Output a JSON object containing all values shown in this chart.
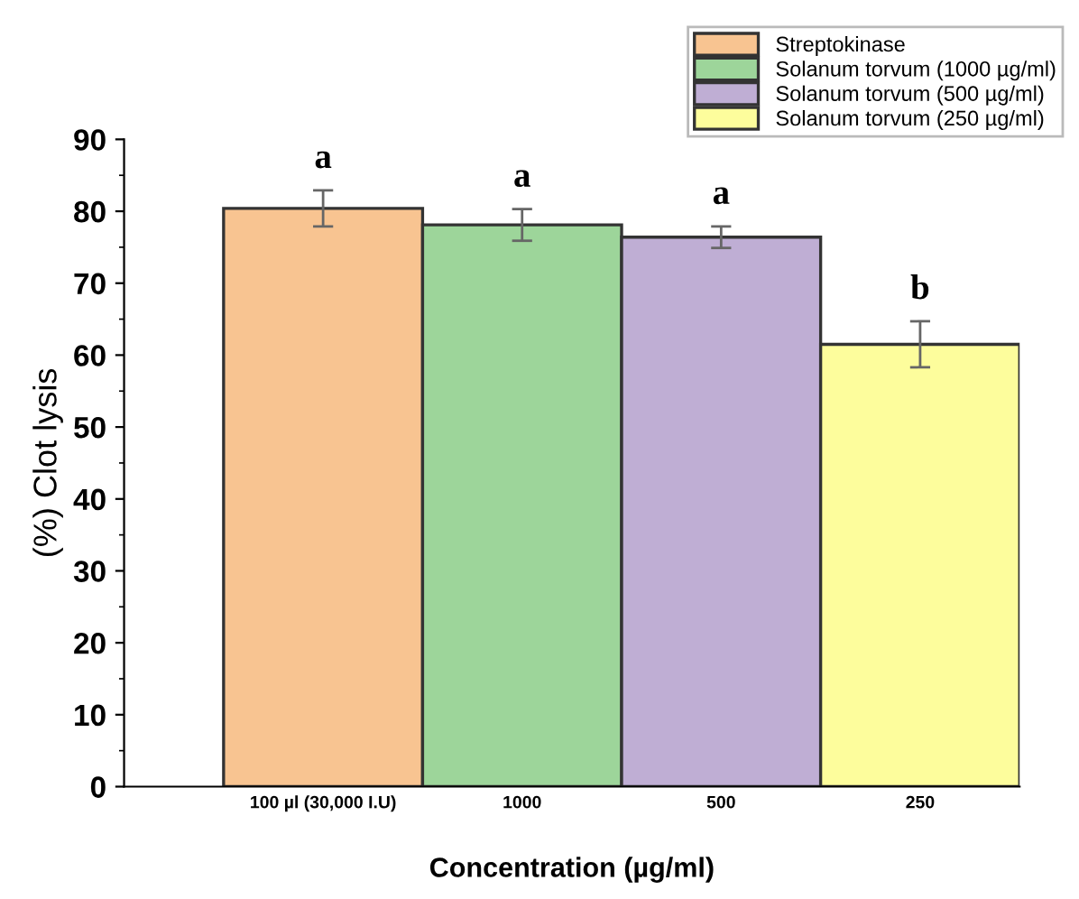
{
  "chart_data": {
    "type": "bar",
    "xlabel": "Concentration (µg/ml)",
    "ylabel": "(%) Clot lysis",
    "categories": [
      "100 µl (30,000 I.U)",
      "1000",
      "500",
      "250"
    ],
    "series": [
      {
        "name": "Streptokinase",
        "color": "#f8c491",
        "values": [
          80.4,
          null,
          null,
          null
        ],
        "errors": [
          2.5,
          null,
          null,
          null
        ]
      },
      {
        "name": "Solanum torvum (1000 µg/ml)",
        "color": "#9dd59a",
        "values": [
          null,
          78.1,
          null,
          null
        ],
        "errors": [
          null,
          2.2,
          null,
          null
        ]
      },
      {
        "name": "Solanum torvum (500 µg/ml)",
        "color": "#bfaed4",
        "values": [
          null,
          null,
          76.4,
          null
        ],
        "errors": [
          null,
          null,
          1.5,
          null
        ]
      },
      {
        "name": "Solanum torvum (250 µg/ml)",
        "color": "#fdfd9c",
        "values": [
          null,
          null,
          null,
          61.5
        ],
        "errors": [
          null,
          null,
          null,
          3.2
        ]
      }
    ],
    "ylim": [
      0,
      90
    ],
    "yticks": [
      0,
      10,
      20,
      30,
      40,
      50,
      60,
      70,
      80,
      90
    ],
    "annotations": [
      "a",
      "a",
      "a",
      "b"
    ],
    "legend": "top right",
    "grid": false
  }
}
